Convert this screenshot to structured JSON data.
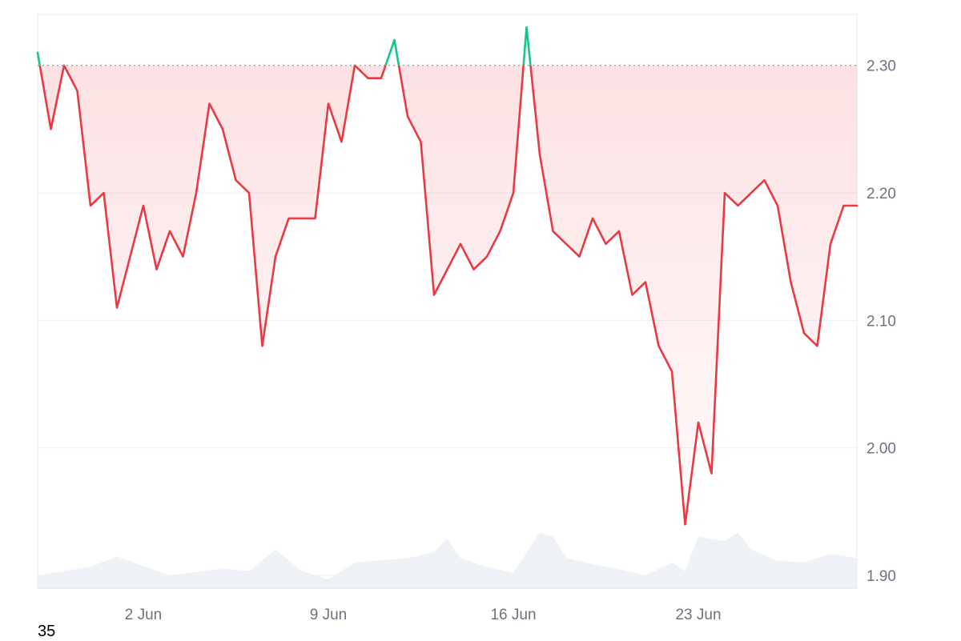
{
  "chart_data": {
    "type": "area",
    "title": "",
    "xlabel": "",
    "ylabel": "",
    "x_range": [
      "2025-05-29",
      "2025-06-29"
    ],
    "x_ticks": [
      {
        "label": "2 Jun",
        "date": "2025-06-02"
      },
      {
        "label": "9 Jun",
        "date": "2025-06-09"
      },
      {
        "label": "16 Jun",
        "date": "2025-06-16"
      },
      {
        "label": "23 Jun",
        "date": "2025-06-23"
      }
    ],
    "ylim": [
      1.89,
      2.34
    ],
    "y_ticks": [
      "2.30",
      "2.20",
      "2.10",
      "2.00",
      "1.90"
    ],
    "y_axis_position": "right",
    "grid": "horizontal",
    "baseline": 2.3,
    "colors": {
      "above_baseline": "#16c784",
      "below_baseline": "#ea3943",
      "fill_below": "#fde2e4",
      "volume": "#eef1f5",
      "grid": "#eceef2",
      "axis": "#d8dce3"
    },
    "series": [
      {
        "x": [
          "2025-05-29",
          "2025-05-29T12",
          "2025-05-30",
          "2025-05-30T12",
          "2025-05-31",
          "2025-05-31T12",
          "2025-06-01",
          "2025-06-01T12",
          "2025-06-02",
          "2025-06-02T12",
          "2025-06-03",
          "2025-06-03T12",
          "2025-06-04",
          "2025-06-04T12",
          "2025-06-05",
          "2025-06-05T12",
          "2025-06-06",
          "2025-06-06T12",
          "2025-06-07",
          "2025-06-07T12",
          "2025-06-08",
          "2025-06-08T12",
          "2025-06-09",
          "2025-06-09T12",
          "2025-06-10",
          "2025-06-10T12",
          "2025-06-11",
          "2025-06-11T12",
          "2025-06-12",
          "2025-06-12T12",
          "2025-06-13",
          "2025-06-13T12",
          "2025-06-14",
          "2025-06-14T12",
          "2025-06-15",
          "2025-06-15T12",
          "2025-06-16",
          "2025-06-16T12",
          "2025-06-17",
          "2025-06-17T12",
          "2025-06-18",
          "2025-06-18T12",
          "2025-06-19",
          "2025-06-19T12",
          "2025-06-20",
          "2025-06-20T12",
          "2025-06-21",
          "2025-06-21T12",
          "2025-06-22",
          "2025-06-22T12",
          "2025-06-23",
          "2025-06-23T12",
          "2025-06-24",
          "2025-06-24T12",
          "2025-06-25",
          "2025-06-25T12",
          "2025-06-26",
          "2025-06-26T12",
          "2025-06-27",
          "2025-06-27T12",
          "2025-06-28",
          "2025-06-28T12",
          "2025-06-29"
        ],
        "values": [
          2.31,
          2.25,
          2.3,
          2.28,
          2.19,
          2.2,
          2.11,
          2.15,
          2.19,
          2.14,
          2.17,
          2.15,
          2.2,
          2.27,
          2.25,
          2.21,
          2.2,
          2.08,
          2.15,
          2.18,
          2.18,
          2.18,
          2.27,
          2.24,
          2.3,
          2.29,
          2.29,
          2.32,
          2.26,
          2.24,
          2.12,
          2.14,
          2.16,
          2.14,
          2.15,
          2.17,
          2.2,
          2.33,
          2.23,
          2.17,
          2.16,
          2.15,
          2.18,
          2.16,
          2.17,
          2.12,
          2.13,
          2.08,
          2.06,
          1.94,
          2.02,
          1.98,
          2.2,
          2.19,
          2.2,
          2.21,
          2.19,
          2.13,
          2.09,
          2.08,
          2.16,
          2.19,
          2.19
        ]
      }
    ],
    "volume": {
      "x": [
        "2025-05-29",
        "2025-05-31",
        "2025-06-01",
        "2025-06-03",
        "2025-06-05",
        "2025-06-06",
        "2025-06-07",
        "2025-06-08",
        "2025-06-09",
        "2025-06-10",
        "2025-06-12",
        "2025-06-13",
        "2025-06-13T12",
        "2025-06-14",
        "2025-06-15",
        "2025-06-16",
        "2025-06-17",
        "2025-06-17T12",
        "2025-06-18",
        "2025-06-19",
        "2025-06-20",
        "2025-06-21",
        "2025-06-22",
        "2025-06-22T12",
        "2025-06-23",
        "2025-06-24",
        "2025-06-24T12",
        "2025-06-25",
        "2025-06-26",
        "2025-06-27",
        "2025-06-28",
        "2025-06-29"
      ],
      "values": [
        0.15,
        0.25,
        0.37,
        0.15,
        0.23,
        0.2,
        0.45,
        0.2,
        0.1,
        0.3,
        0.35,
        0.42,
        0.58,
        0.35,
        0.25,
        0.18,
        0.65,
        0.6,
        0.35,
        0.28,
        0.22,
        0.15,
        0.3,
        0.2,
        0.6,
        0.55,
        0.65,
        0.45,
        0.32,
        0.3,
        0.4,
        0.35
      ]
    }
  },
  "footer": {
    "note": "35"
  }
}
